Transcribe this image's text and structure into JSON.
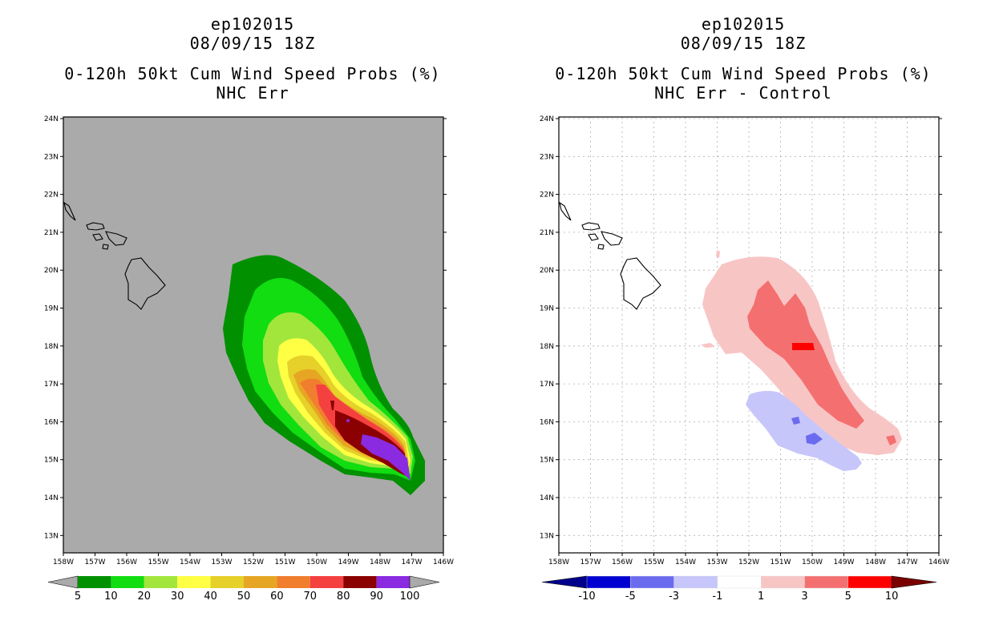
{
  "left": {
    "title_storm": "ep102015",
    "title_time": "08/09/15 18Z",
    "title_product": "0-120h 50kt Cum Wind Speed Probs (%)",
    "title_variant": "NHC Err",
    "colorbar_labels": [
      "5",
      "10",
      "20",
      "30",
      "40",
      "50",
      "60",
      "70",
      "80",
      "90",
      "100"
    ],
    "colorbar_colors": [
      "#009000",
      "#11dd11",
      "#a2e63c",
      "#ffff44",
      "#e6d02a",
      "#e6a623",
      "#f07e2e",
      "#f54040",
      "#8b0000",
      "#8a2be2"
    ]
  },
  "right": {
    "title_storm": "ep102015",
    "title_time": "08/09/15 18Z",
    "title_product": "0-120h 50kt Cum Wind Speed Probs (%)",
    "title_variant": "NHC Err - Control",
    "colorbar_labels": [
      "-10",
      "-5",
      "-3",
      "-1",
      "1",
      "3",
      "5",
      "10"
    ],
    "colorbar_colors": [
      "#0000d0",
      "#6b6bf0",
      "#c6c6fa",
      "#ffffff",
      "#f8c5c5",
      "#f47070",
      "#ff0000"
    ]
  },
  "map": {
    "lat_labels": [
      "24N",
      "23N",
      "22N",
      "21N",
      "20N",
      "19N",
      "18N",
      "17N",
      "16N",
      "15N",
      "14N",
      "13N"
    ],
    "lon_labels": [
      "158W",
      "157W",
      "156W",
      "155W",
      "154W",
      "153W",
      "152W",
      "151W",
      "150W",
      "149W",
      "148W",
      "147W",
      "146W"
    ]
  }
}
